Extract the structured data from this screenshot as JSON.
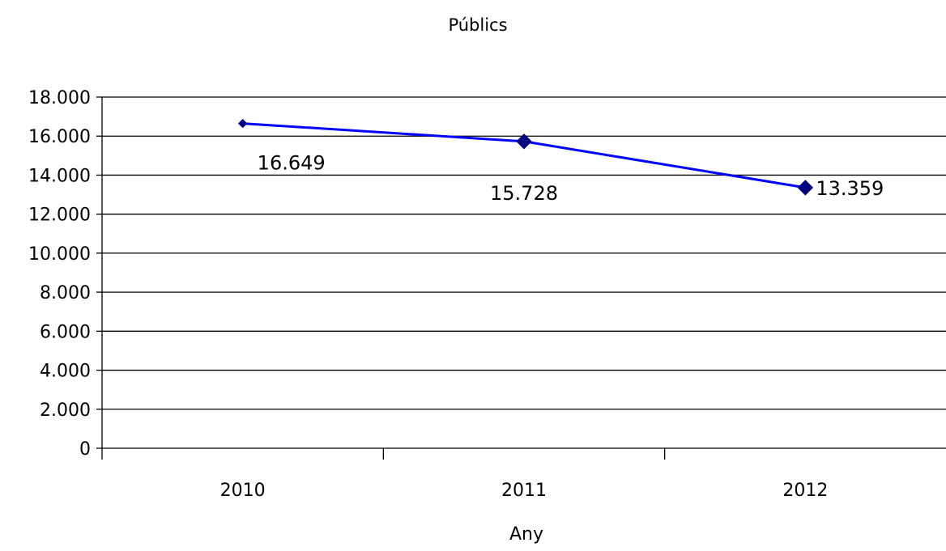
{
  "chart_data": {
    "type": "line",
    "title": "Públics",
    "xlabel": "Any",
    "ylabel": "",
    "categories": [
      "2010",
      "2011",
      "2012"
    ],
    "series": [
      {
        "values": [
          16649,
          15728,
          13359
        ],
        "labels": [
          "16.649",
          "15.728",
          "13.359"
        ],
        "color": "#0000ff",
        "marker": "diamond",
        "marker_color": "#000080"
      }
    ],
    "ylim": [
      0,
      18000
    ],
    "ytick_values": [
      0,
      2000,
      4000,
      6000,
      8000,
      10000,
      12000,
      14000,
      16000,
      18000
    ],
    "ytick_labels": [
      "0",
      "2.000",
      "4.000",
      "6.000",
      "8.000",
      "10.000",
      "12.000",
      "14.000",
      "16.000",
      "18.000"
    ],
    "grid": true,
    "legend": "none"
  }
}
